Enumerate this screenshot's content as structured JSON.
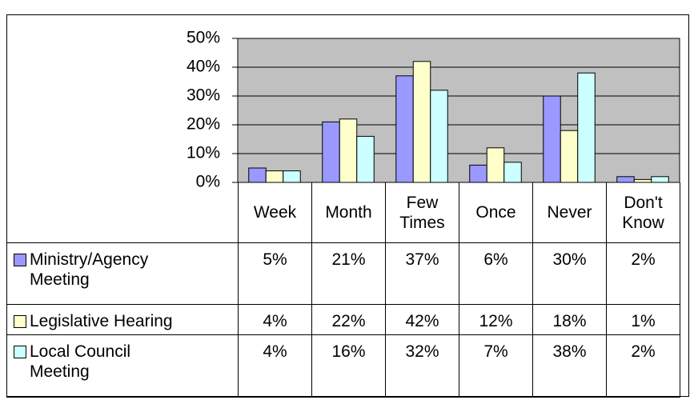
{
  "chart_data": {
    "type": "bar",
    "categories": [
      "Week",
      "Month",
      "Few Times",
      "Once",
      "Never",
      "Don't Know"
    ],
    "series": [
      {
        "name": "Ministry/Agency Meeting",
        "color": "#9999ff",
        "values": [
          5,
          21,
          37,
          6,
          30,
          2
        ],
        "value_labels": [
          "5%",
          "21%",
          "37%",
          "6%",
          "30%",
          "2%"
        ]
      },
      {
        "name": "Legislative Hearing",
        "color": "#ffffcc",
        "values": [
          4,
          22,
          42,
          12,
          18,
          1
        ],
        "value_labels": [
          "4%",
          "22%",
          "42%",
          "12%",
          "18%",
          "1%"
        ]
      },
      {
        "name": "Local Council Meeting",
        "color": "#ccffff",
        "values": [
          4,
          16,
          32,
          7,
          38,
          2
        ],
        "value_labels": [
          "4%",
          "16%",
          "32%",
          "7%",
          "38%",
          "2%"
        ]
      }
    ],
    "ylim": [
      0,
      50
    ],
    "yticks": [
      {
        "value": 0,
        "label": "0%"
      },
      {
        "value": 10,
        "label": "10%"
      },
      {
        "value": 20,
        "label": "20%"
      },
      {
        "value": 30,
        "label": "30%"
      },
      {
        "value": 40,
        "label": "40%"
      },
      {
        "value": 50,
        "label": "50%"
      }
    ],
    "grid": true,
    "plot_background": "#c0c0c0"
  }
}
